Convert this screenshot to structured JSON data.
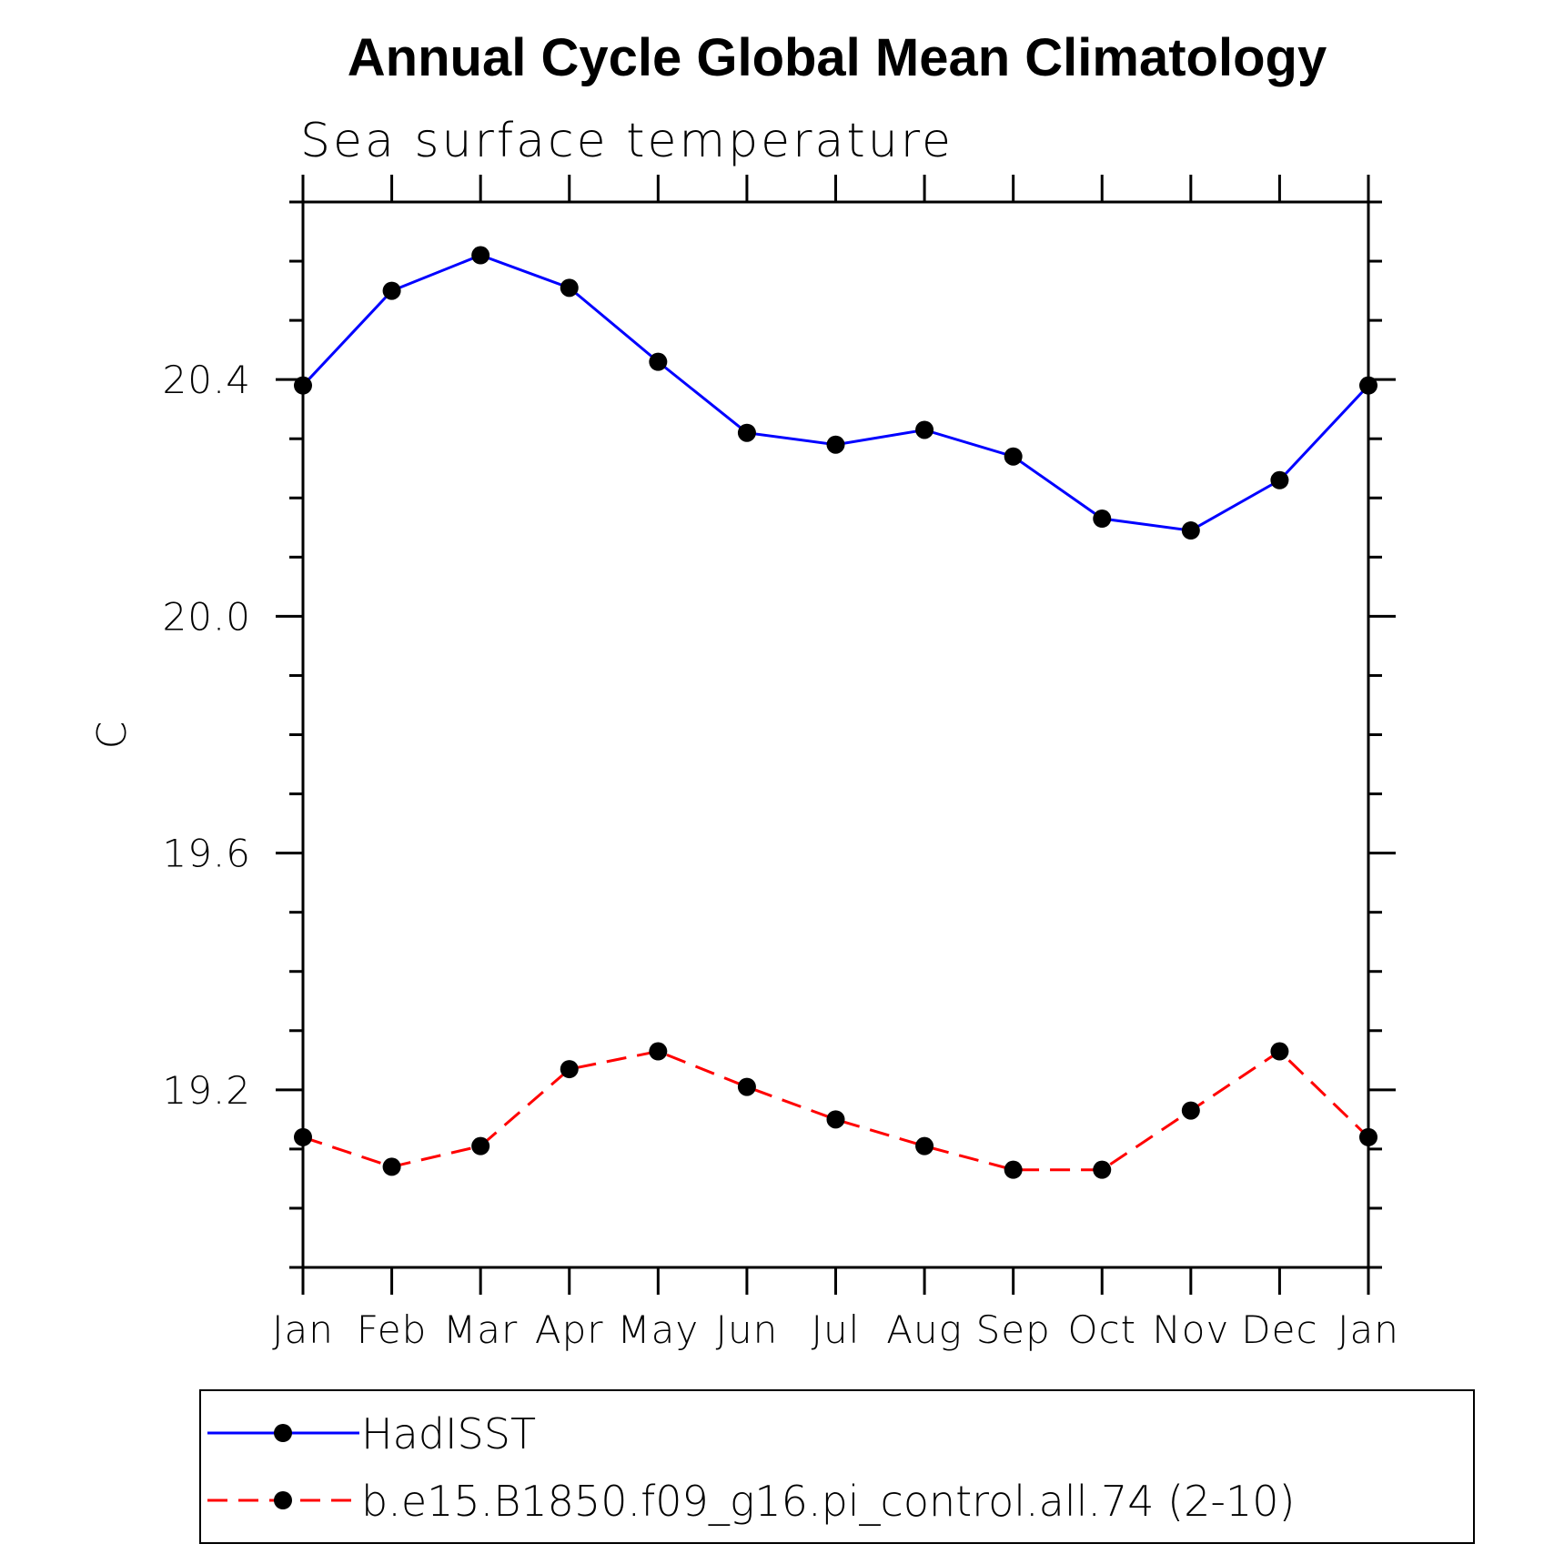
{
  "chart_data": {
    "type": "line",
    "title": "Annual Cycle Global Mean Climatology",
    "subtitle": "Sea surface temperature",
    "ylabel": "C",
    "xlabel": "",
    "categories": [
      "Jan",
      "Feb",
      "Mar",
      "Apr",
      "May",
      "Jun",
      "Jul",
      "Aug",
      "Sep",
      "Oct",
      "Nov",
      "Dec",
      "Jan"
    ],
    "ylim": [
      18.9,
      20.7
    ],
    "yticks_major": [
      "19.2",
      "19.6",
      "20.0",
      "20.4"
    ],
    "ytick_minor_step": 0.1,
    "legend_position": "bottom",
    "grid": false,
    "series": [
      {
        "name": "HadISST",
        "color": "#0000ff",
        "line_style": "solid",
        "marker": "filled-circle",
        "values": [
          20.39,
          20.55,
          20.61,
          20.555,
          20.43,
          20.31,
          20.29,
          20.315,
          20.27,
          20.165,
          20.145,
          20.23,
          20.39
        ]
      },
      {
        "name": "b.e15.B1850.f09_g16.pi_control.all.74 (2-10)",
        "color": "#ff0000",
        "line_style": "dashed",
        "marker": "filled-circle",
        "values": [
          19.12,
          19.07,
          19.105,
          19.235,
          19.265,
          19.205,
          19.15,
          19.105,
          19.065,
          19.065,
          19.165,
          19.265,
          19.12
        ]
      }
    ]
  }
}
